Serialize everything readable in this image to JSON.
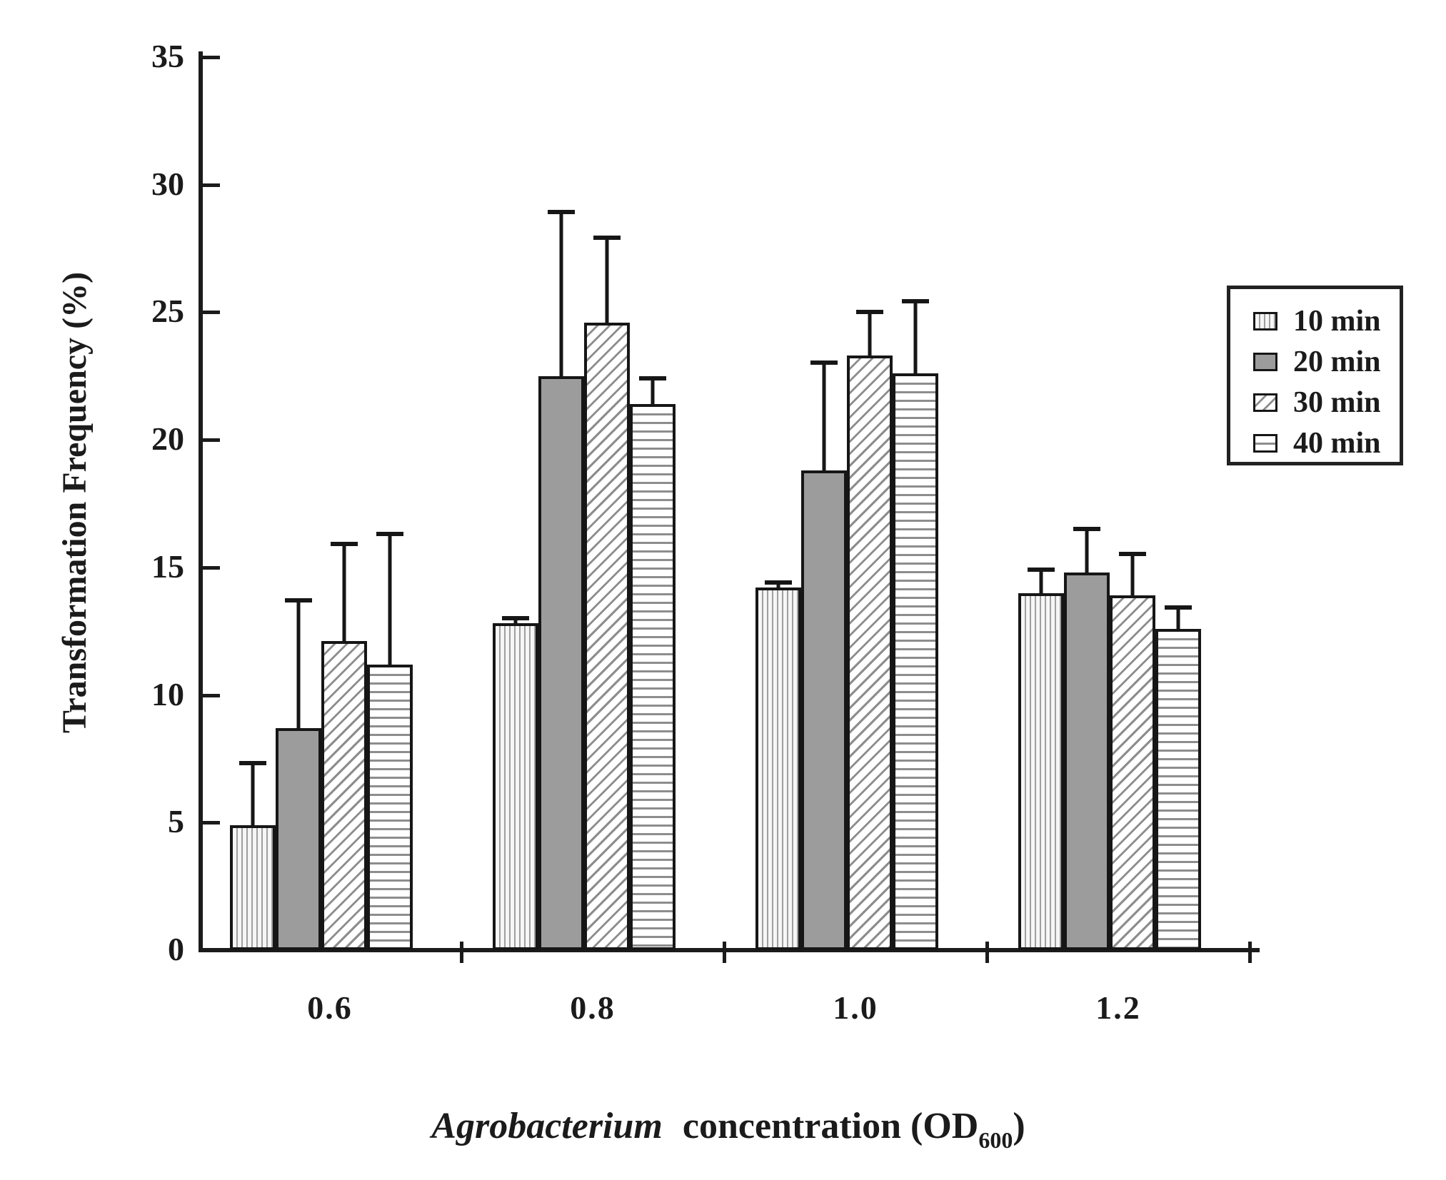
{
  "figure": {
    "background": "#ffffff",
    "ink_color": "#1b1b1b",
    "gray_fill": "#9c9c9c"
  },
  "chart_data": {
    "type": "bar",
    "title": "",
    "ylabel": "Transformation Frequency (%)",
    "xlabel_italic": "Agrobacterium",
    "xlabel_mid": "concentration (OD",
    "xlabel_sub": "600",
    "xlabel_end": ")",
    "categories": [
      "0.6",
      "0.8",
      "1.0",
      "1.2"
    ],
    "ylim": [
      0,
      35
    ],
    "yticks": [
      0,
      5,
      10,
      15,
      20,
      25,
      30,
      35
    ],
    "grid": false,
    "legend_position": "upper right",
    "error_bars": "upper only",
    "series": [
      {
        "name": "10 min",
        "pattern": "vertical",
        "values": [
          4.9,
          12.8,
          14.2,
          14.0
        ],
        "errors": [
          2.5,
          0.3,
          0.3,
          1.0
        ]
      },
      {
        "name": "20 min",
        "pattern": "solid-gray",
        "values": [
          8.7,
          22.5,
          18.8,
          14.8
        ],
        "errors": [
          5.1,
          6.5,
          4.3,
          1.8
        ]
      },
      {
        "name": "30 min",
        "pattern": "diagonal",
        "values": [
          12.1,
          24.6,
          23.3,
          13.9
        ],
        "errors": [
          3.9,
          3.4,
          1.8,
          1.7
        ]
      },
      {
        "name": "40 min",
        "pattern": "horizontal",
        "values": [
          11.2,
          21.4,
          22.6,
          12.6
        ],
        "errors": [
          5.2,
          1.1,
          2.9,
          0.9
        ]
      }
    ]
  }
}
